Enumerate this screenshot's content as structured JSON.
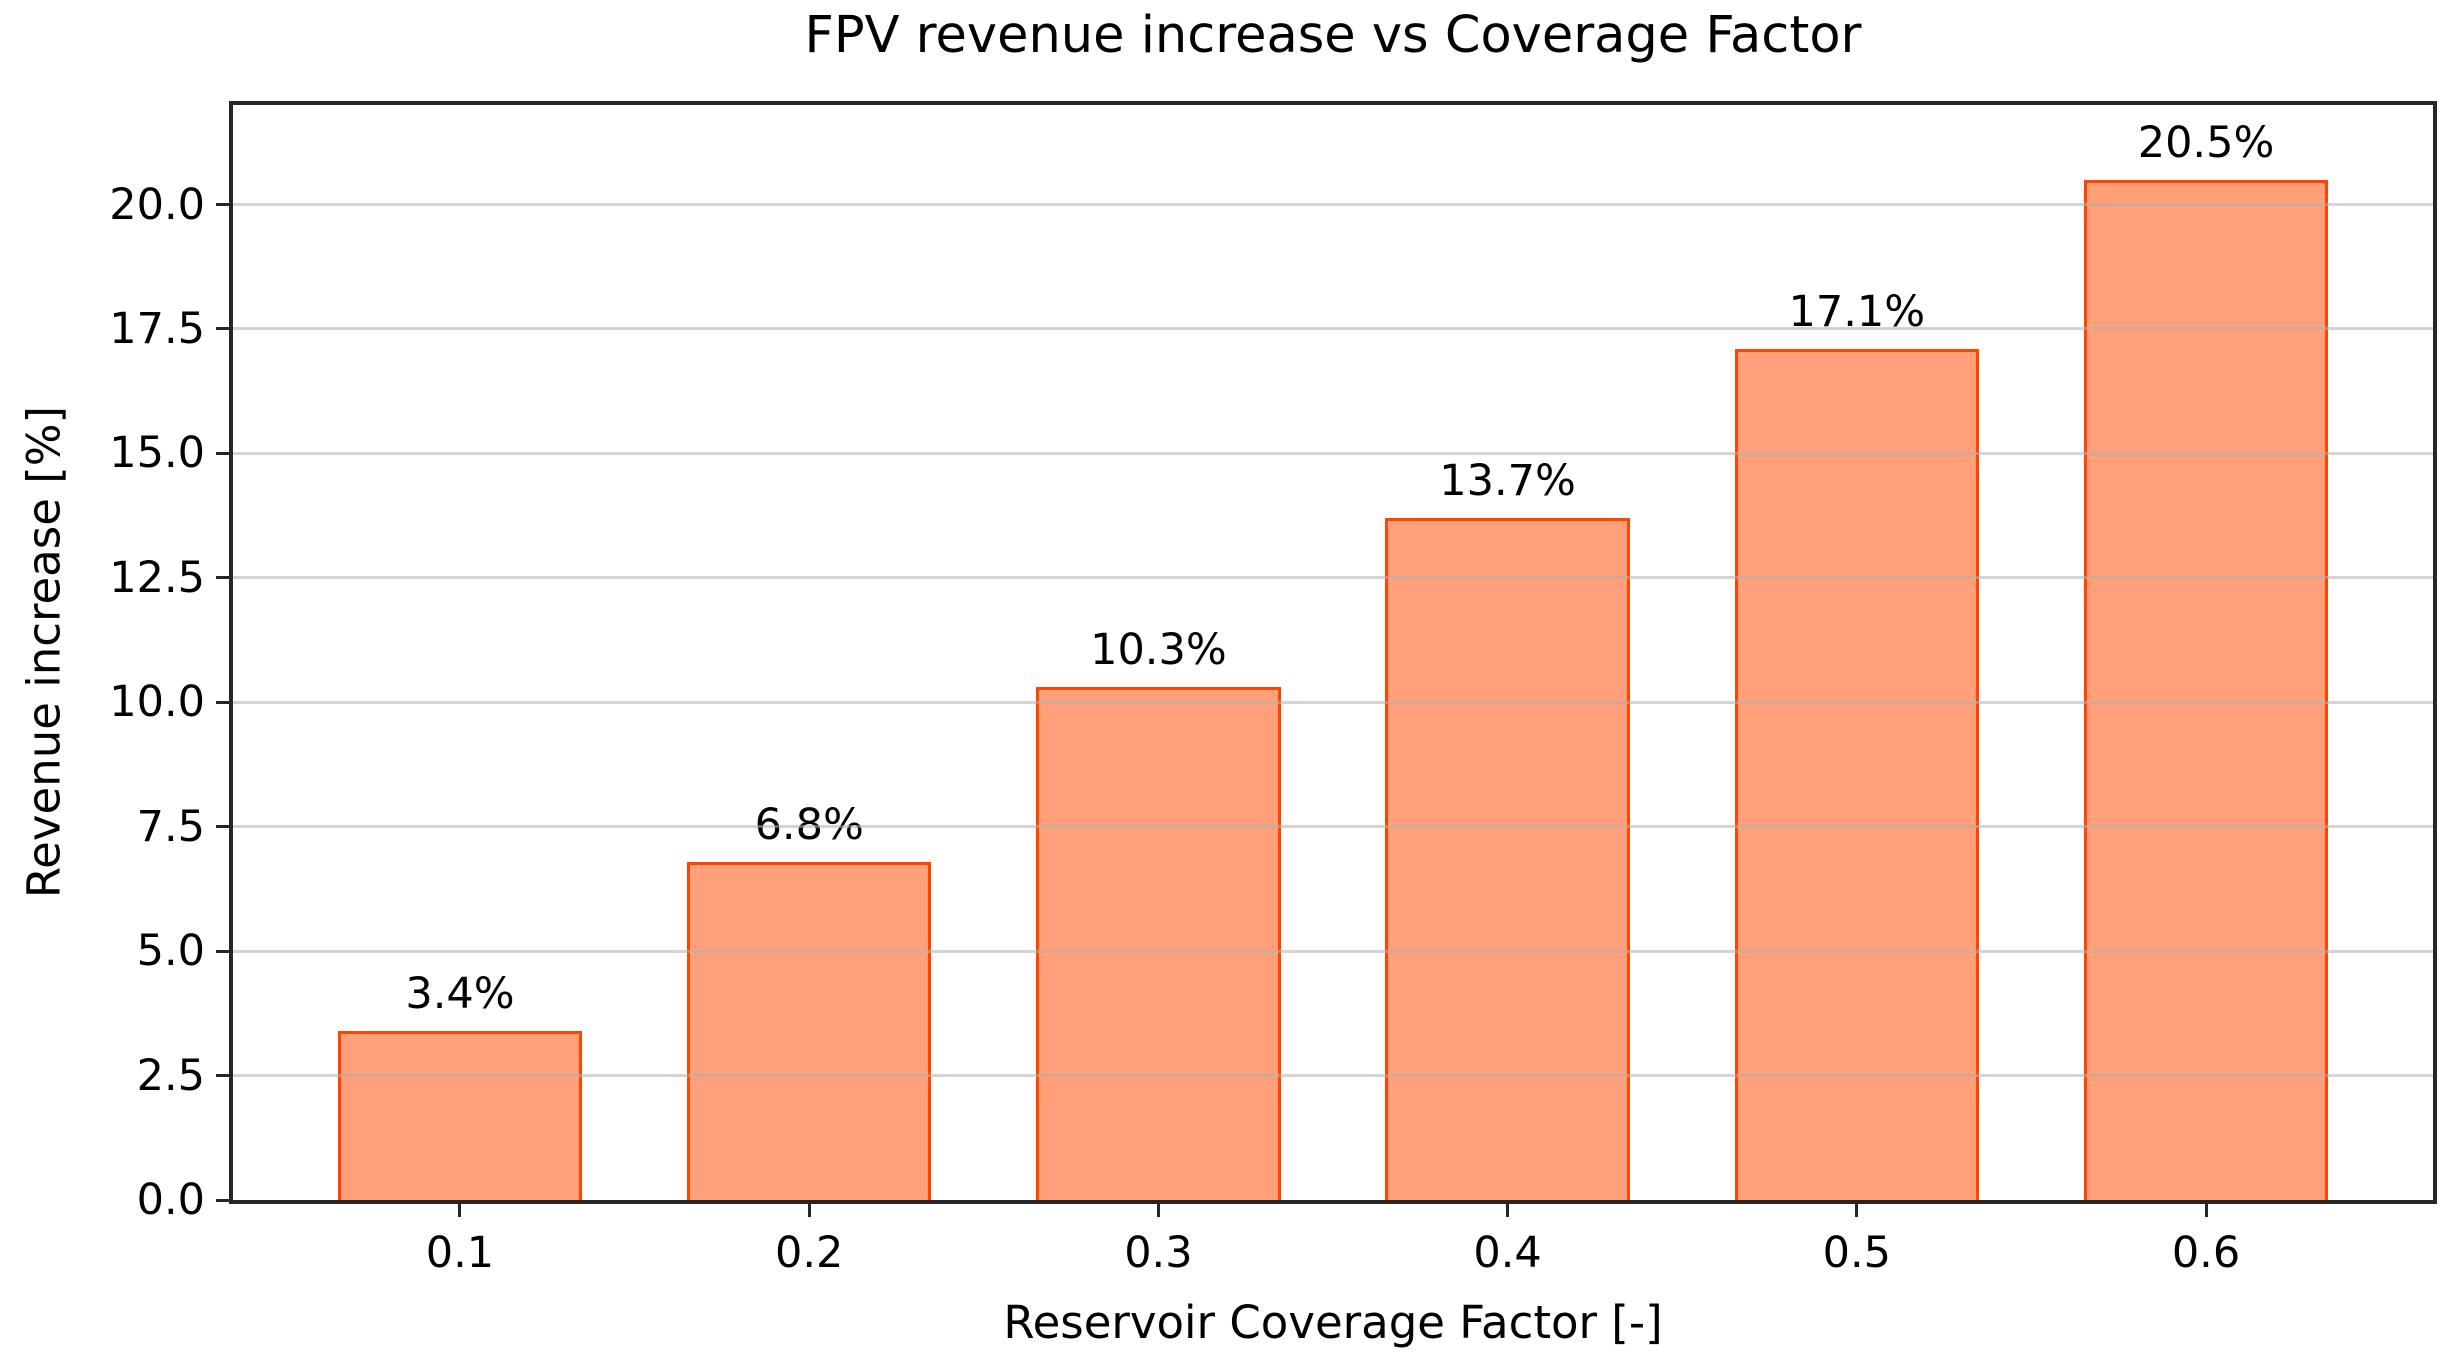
{
  "chart_data": {
    "type": "bar",
    "title": "FPV revenue increase vs Coverage Factor",
    "xlabel": "Reservoir Coverage Factor [-]",
    "ylabel": "Revenue increase [%]",
    "categories": [
      "0.1",
      "0.2",
      "0.3",
      "0.4",
      "0.5",
      "0.6"
    ],
    "values": [
      3.4,
      6.8,
      10.3,
      13.7,
      17.1,
      20.5
    ],
    "bar_labels": [
      "3.4%",
      "6.8%",
      "10.3%",
      "13.7%",
      "17.1%",
      "20.5%"
    ],
    "yticks": [
      0.0,
      2.5,
      5.0,
      7.5,
      10.0,
      12.5,
      15.0,
      17.5,
      20.0
    ],
    "ytick_labels": [
      "0.0",
      "2.5",
      "5.0",
      "7.5",
      "10.0",
      "12.5",
      "15.0",
      "17.5",
      "20.0"
    ],
    "ylim": [
      0,
      22
    ],
    "grid": "horizontal",
    "grid_above_bars": true,
    "legend_position": "none",
    "colors": {
      "bar_fill": "#FFA07A",
      "bar_edge": "#FF4500",
      "gridline": "rgba(176,176,176,0.55)",
      "spine": "#262626",
      "text": "#000000",
      "background": "#FFFFFF"
    }
  }
}
